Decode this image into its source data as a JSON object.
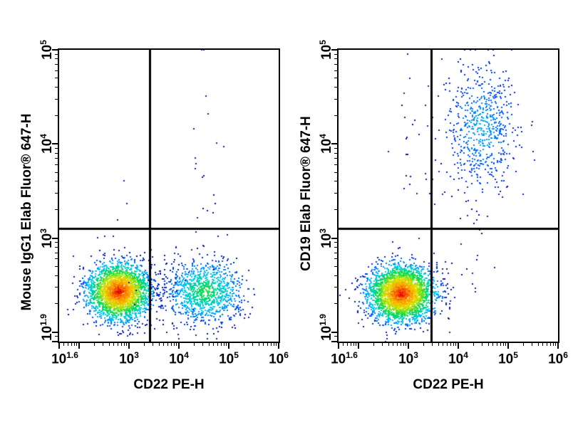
{
  "figure": {
    "background": "#ffffff",
    "frame_color": "#000000",
    "text_color": "#000000",
    "gate_color": "#000000",
    "density_colormap": [
      "#00008c",
      "#0048ff",
      "#00c8ff",
      "#00dc50",
      "#e6e600",
      "#ff8c00",
      "#e60000"
    ],
    "sparse_dot_color": "#1a1aa0"
  },
  "chart_data": [
    {
      "type": "scatter",
      "subtype": "flow-cytometry-pseudocolor-density",
      "title": "",
      "xlabel": "CD22 PE-H",
      "ylabel": "Mouse IgG1 Elab Fluor® 647-H",
      "x_log_range": [
        1.6,
        6
      ],
      "y_log_range": [
        1.9,
        5
      ],
      "grid": false,
      "legend": false,
      "x_ticks": [
        {
          "log": 1.6,
          "label": "10^1.6"
        },
        {
          "log": 3,
          "label": "10^3"
        },
        {
          "log": 4,
          "label": "10^4"
        },
        {
          "log": 5,
          "label": "10^5"
        },
        {
          "log": 6,
          "label": "10^6"
        }
      ],
      "y_ticks": [
        {
          "log": 1.9,
          "label": "10^1.9"
        },
        {
          "log": 3,
          "label": "10^3"
        },
        {
          "log": 4,
          "label": "10^4"
        },
        {
          "log": 5,
          "label": "10^5"
        }
      ],
      "quadrant_gate_log": {
        "x": 3.41,
        "y": 3.1
      },
      "populations": [
        {
          "name": "negative-main-cluster",
          "center_log": [
            2.8,
            2.43
          ],
          "sigma_log": [
            0.31,
            0.15
          ],
          "count": 2600,
          "peak_density": 1.0,
          "seed": 11
        },
        {
          "name": "cd22-positive-cluster",
          "center_log": [
            4.52,
            2.43
          ],
          "sigma_log": [
            0.38,
            0.16
          ],
          "count": 1050,
          "peak_density": 0.55,
          "seed": 12
        },
        {
          "name": "bridge-sparse",
          "center_log": [
            3.62,
            2.48
          ],
          "sigma_log": [
            0.25,
            0.18
          ],
          "count": 45,
          "peak_density": 0.08,
          "seed": 13
        },
        {
          "name": "upper-trail-sparse",
          "center_log": [
            4.55,
            3.6
          ],
          "sigma_log": [
            0.16,
            0.55
          ],
          "count": 26,
          "peak_density": 0.05,
          "seed": 14
        },
        {
          "name": "upper-left-sparse",
          "center_log": [
            2.82,
            3.3
          ],
          "sigma_log": [
            0.1,
            0.22
          ],
          "count": 4,
          "peak_density": 0.05,
          "seed": 15
        }
      ]
    },
    {
      "type": "scatter",
      "subtype": "flow-cytometry-pseudocolor-density",
      "title": "",
      "xlabel": "CD22 PE-H",
      "ylabel": "CD19 Elab Fluor® 647-H",
      "x_log_range": [
        1.6,
        6
      ],
      "y_log_range": [
        1.9,
        5
      ],
      "grid": false,
      "legend": false,
      "x_ticks": [
        {
          "log": 1.6,
          "label": "10^1.6"
        },
        {
          "log": 3,
          "label": "10^3"
        },
        {
          "log": 4,
          "label": "10^4"
        },
        {
          "log": 5,
          "label": "10^5"
        },
        {
          "log": 6,
          "label": "10^6"
        }
      ],
      "y_ticks": [
        {
          "log": 1.9,
          "label": "10^1.9"
        },
        {
          "log": 3,
          "label": "10^3"
        },
        {
          "log": 4,
          "label": "10^4"
        },
        {
          "log": 5,
          "label": "10^5"
        }
      ],
      "quadrant_gate_log": {
        "x": 3.46,
        "y": 3.1
      },
      "populations": [
        {
          "name": "negative-main-cluster",
          "center_log": [
            2.86,
            2.41
          ],
          "sigma_log": [
            0.33,
            0.15
          ],
          "count": 3000,
          "peak_density": 1.0,
          "seed": 21
        },
        {
          "name": "cd19-cd22-double-positive",
          "center_log": [
            4.46,
            4.17
          ],
          "sigma_log": [
            0.36,
            0.34
          ],
          "count": 640,
          "peak_density": 0.32,
          "seed": 22
        },
        {
          "name": "upper-left-trail-sparse",
          "center_log": [
            2.95,
            3.85
          ],
          "sigma_log": [
            0.2,
            0.5
          ],
          "count": 20,
          "peak_density": 0.05,
          "seed": 23
        },
        {
          "name": "lower-right-sparse",
          "center_log": [
            3.95,
            2.55
          ],
          "sigma_log": [
            0.3,
            0.2
          ],
          "count": 14,
          "peak_density": 0.05,
          "seed": 24
        },
        {
          "name": "below-positive-trail-sparse",
          "center_log": [
            4.35,
            3.1
          ],
          "sigma_log": [
            0.15,
            0.25
          ],
          "count": 10,
          "peak_density": 0.05,
          "seed": 25
        }
      ]
    }
  ]
}
